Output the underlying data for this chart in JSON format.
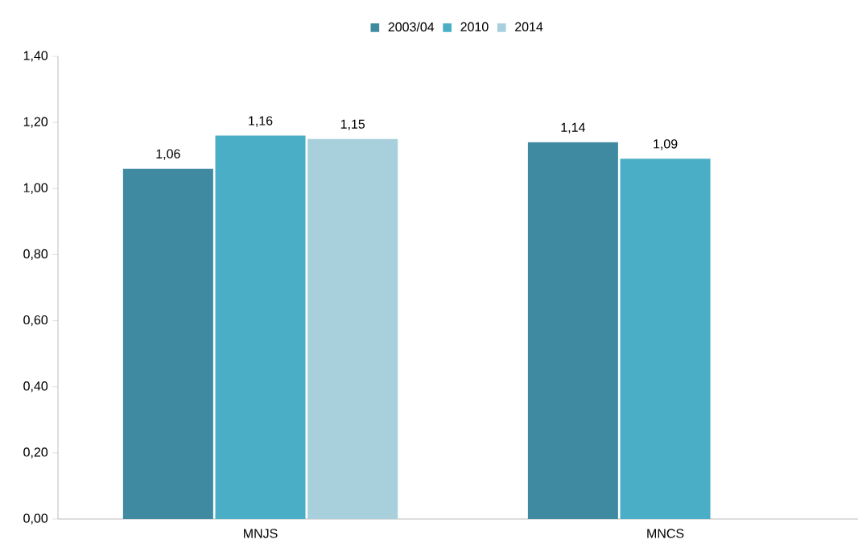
{
  "chart_data": {
    "type": "bar",
    "categories": [
      "MNJS",
      "MNCS"
    ],
    "series": [
      {
        "name": "2003/04",
        "color": "#3f8aa0",
        "values": [
          1.06,
          1.14
        ],
        "value_labels": [
          "1,06",
          "1,14"
        ]
      },
      {
        "name": "2010",
        "color": "#4aaec6",
        "values": [
          1.16,
          1.09
        ],
        "value_labels": [
          "1,16",
          "1,09"
        ]
      },
      {
        "name": "2014",
        "color": "#a8cfdc",
        "values": [
          1.15,
          null
        ],
        "value_labels": [
          "1,15",
          null
        ]
      }
    ],
    "ylim": [
      0,
      1.4
    ],
    "yticks": [
      {
        "value": 0,
        "label": "0,00"
      },
      {
        "value": 0.2,
        "label": "0,20"
      },
      {
        "value": 0.4,
        "label": "0,40"
      },
      {
        "value": 0.6,
        "label": "0,60"
      },
      {
        "value": 0.8,
        "label": "0,80"
      },
      {
        "value": 1.0,
        "label": "1,00"
      },
      {
        "value": 1.2,
        "label": "1,20"
      },
      {
        "value": 1.4,
        "label": "1,40"
      }
    ],
    "grid": false,
    "legend": "top"
  }
}
